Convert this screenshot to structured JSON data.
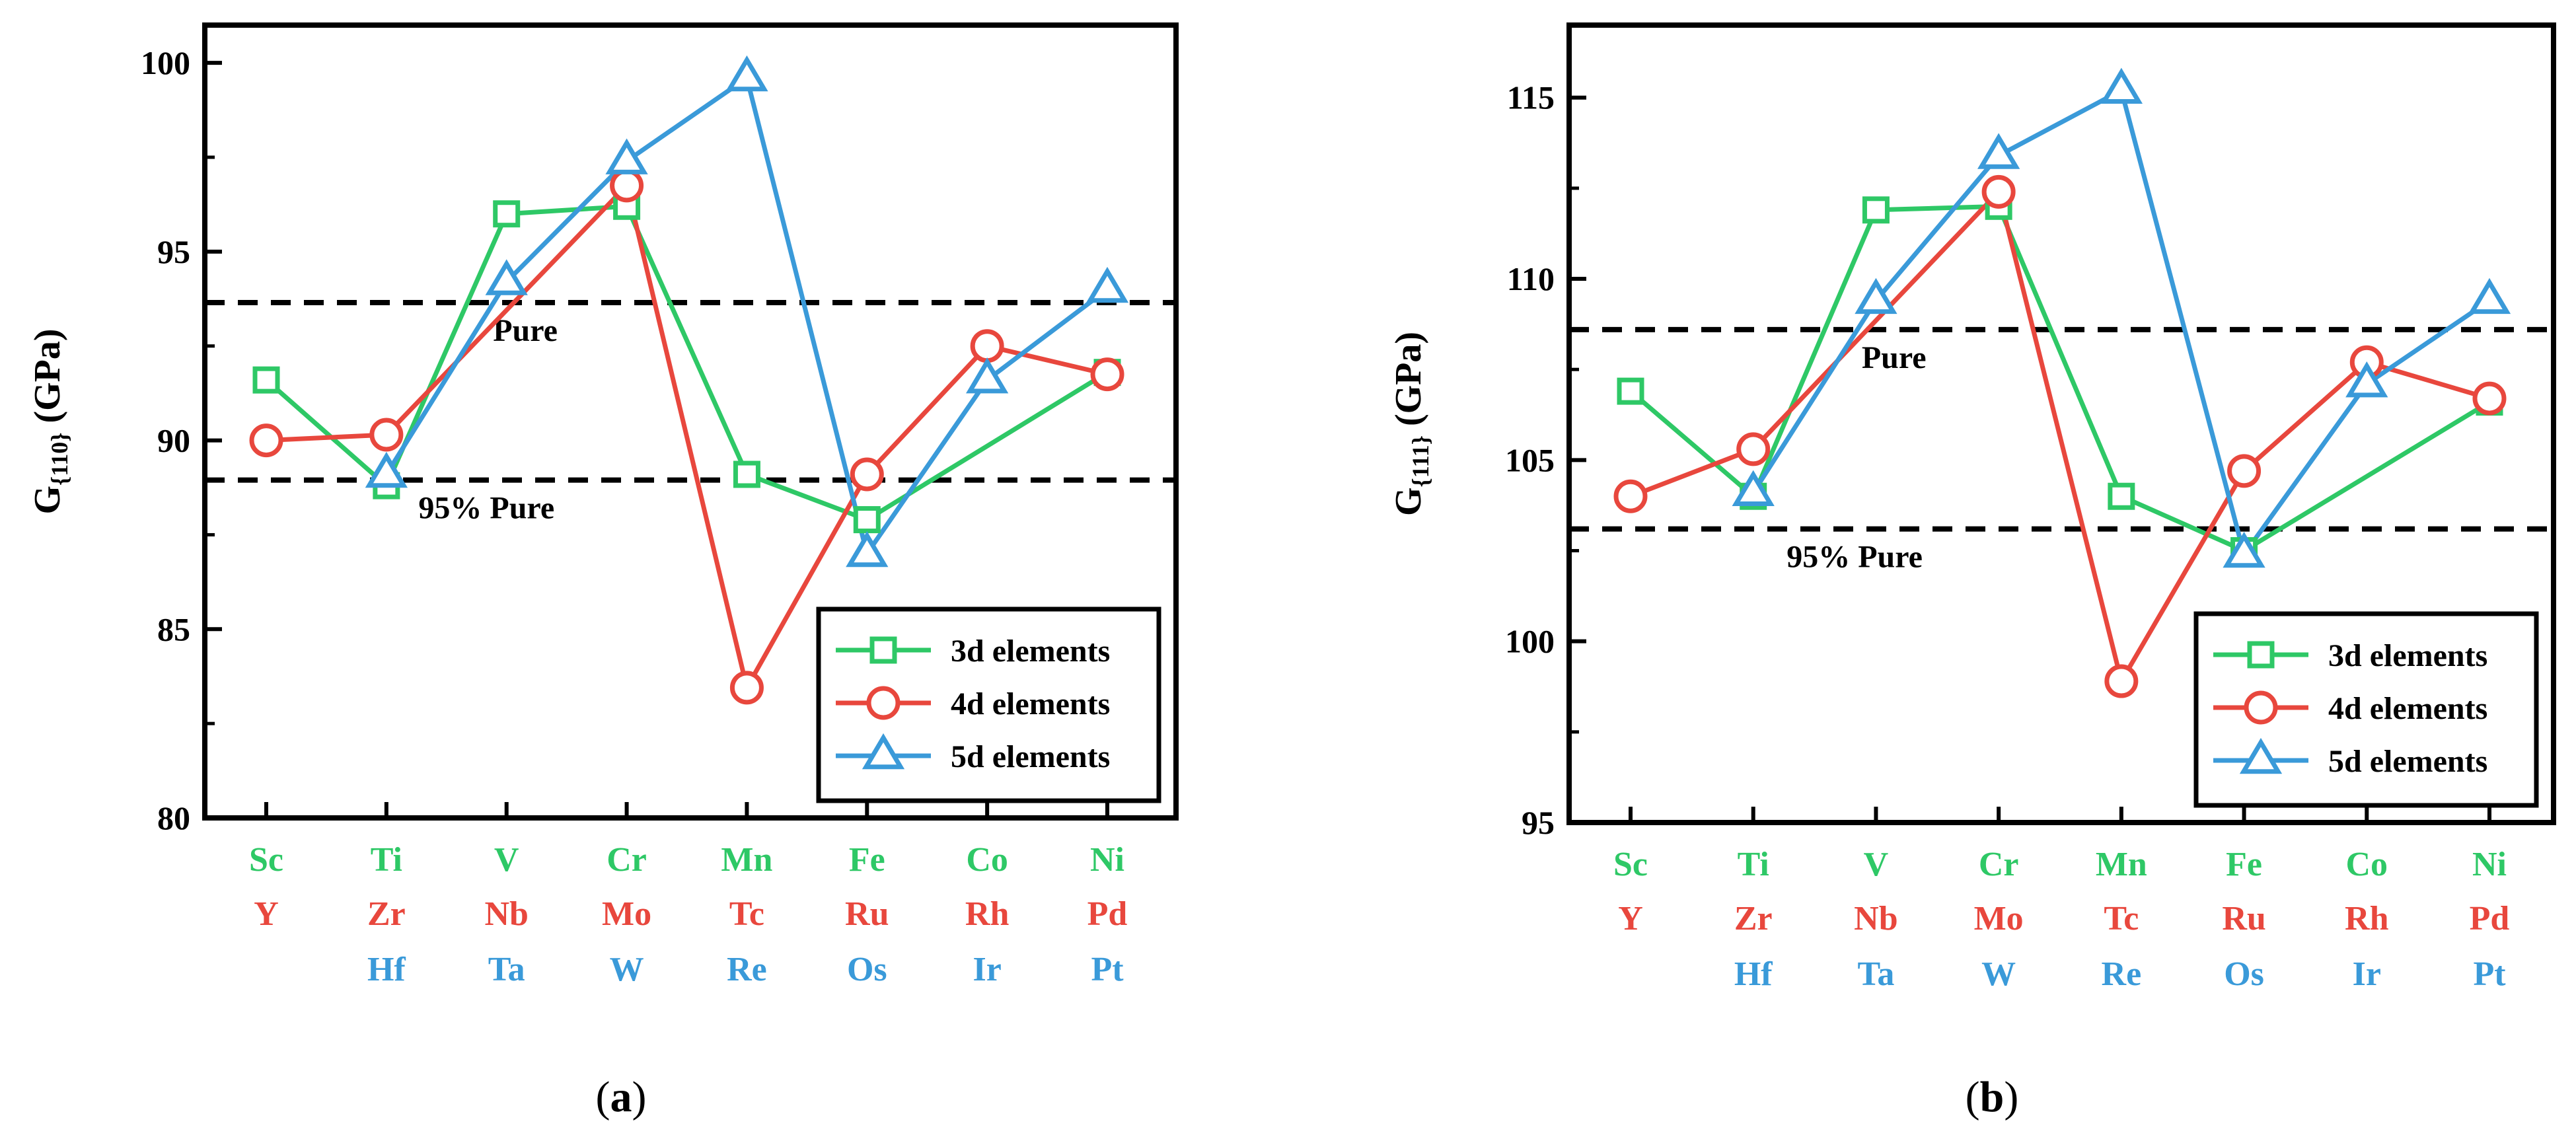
{
  "chart_data": [
    {
      "type": "line",
      "panel_label": "a",
      "ylabel": "G{110} (GPa)",
      "ylabel_main": "G",
      "ylabel_sub": "{110}",
      "ylabel_unit": " (GPa)",
      "ylim": [
        80,
        101
      ],
      "yticks": [
        80,
        85,
        90,
        95,
        100
      ],
      "categories": [
        {
          "d3": "Sc",
          "d4": "Y",
          "d5": ""
        },
        {
          "d3": "Ti",
          "d4": "Zr",
          "d5": "Hf"
        },
        {
          "d3": "V",
          "d4": "Nb",
          "d5": "Ta"
        },
        {
          "d3": "Cr",
          "d4": "Mo",
          "d5": "W"
        },
        {
          "d3": "Mn",
          "d4": "Tc",
          "d5": "Re"
        },
        {
          "d3": "Fe",
          "d4": "Ru",
          "d5": "Os"
        },
        {
          "d3": "Co",
          "d4": "Rh",
          "d5": "Ir"
        },
        {
          "d3": "Ni",
          "d4": "Pd",
          "d5": "Pt"
        }
      ],
      "reference_lines": [
        {
          "label": "Pure",
          "value": 93.65
        },
        {
          "label": "95% Pure",
          "value": 88.95
        }
      ],
      "series": [
        {
          "name": "3d elements",
          "marker": "square",
          "values": [
            91.6,
            88.8,
            96.0,
            96.2,
            89.1,
            87.9,
            null,
            91.8
          ]
        },
        {
          "name": "4d elements",
          "marker": "circle",
          "values": [
            90.0,
            90.15,
            null,
            96.75,
            83.45,
            89.1,
            92.5,
            91.75
          ]
        },
        {
          "name": "5d elements",
          "marker": "triangle",
          "values": [
            null,
            89.1,
            94.2,
            97.4,
            99.6,
            87.0,
            91.6,
            94.0
          ]
        }
      ],
      "legend": "bottom-right"
    },
    {
      "type": "line",
      "panel_label": "b",
      "ylabel": "G{111} (GPa)",
      "ylabel_main": "G",
      "ylabel_sub": "{111}",
      "ylabel_unit": " (GPa)",
      "ylim": [
        95,
        117
      ],
      "yticks": [
        95,
        100,
        105,
        110,
        115
      ],
      "categories": [
        {
          "d3": "Sc",
          "d4": "Y",
          "d5": ""
        },
        {
          "d3": "Ti",
          "d4": "Zr",
          "d5": "Hf"
        },
        {
          "d3": "V",
          "d4": "Nb",
          "d5": "Ta"
        },
        {
          "d3": "Cr",
          "d4": "Mo",
          "d5": "W"
        },
        {
          "d3": "Mn",
          "d4": "Tc",
          "d5": "Re"
        },
        {
          "d3": "Fe",
          "d4": "Ru",
          "d5": "Os"
        },
        {
          "d3": "Co",
          "d4": "Rh",
          "d5": "Ir"
        },
        {
          "d3": "Ni",
          "d4": "Pd",
          "d5": "Pt"
        }
      ],
      "reference_lines": [
        {
          "label": "Pure",
          "value": 108.6
        },
        {
          "label": "95% Pure",
          "value": 103.1
        }
      ],
      "series": [
        {
          "name": "3d elements",
          "marker": "square",
          "values": [
            106.9,
            104.0,
            111.9,
            112.0,
            104.0,
            102.5,
            null,
            106.6
          ]
        },
        {
          "name": "4d elements",
          "marker": "circle",
          "values": [
            104.0,
            105.3,
            null,
            112.4,
            98.9,
            104.7,
            107.7,
            106.7
          ]
        },
        {
          "name": "5d elements",
          "marker": "triangle",
          "values": [
            null,
            104.1,
            109.4,
            113.4,
            115.2,
            102.4,
            107.1,
            109.4
          ]
        }
      ],
      "legend": "bottom-right"
    }
  ],
  "colors": {
    "d3": "#2ec866",
    "d4": "#e8473d",
    "d5": "#3a9ad9",
    "axis": "#000000"
  }
}
